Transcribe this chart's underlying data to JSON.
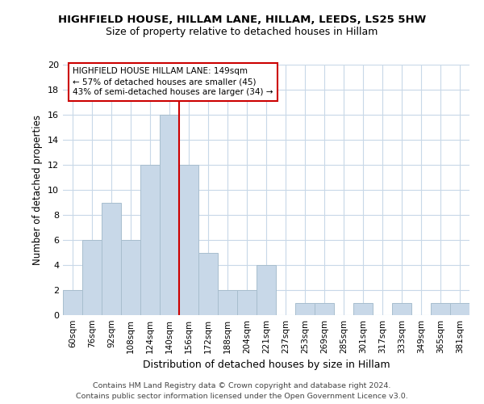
{
  "title": "HIGHFIELD HOUSE, HILLAM LANE, HILLAM, LEEDS, LS25 5HW",
  "subtitle": "Size of property relative to detached houses in Hillam",
  "xlabel": "Distribution of detached houses by size in Hillam",
  "ylabel": "Number of detached properties",
  "bar_labels": [
    "60sqm",
    "76sqm",
    "92sqm",
    "108sqm",
    "124sqm",
    "140sqm",
    "156sqm",
    "172sqm",
    "188sqm",
    "204sqm",
    "221sqm",
    "237sqm",
    "253sqm",
    "269sqm",
    "285sqm",
    "301sqm",
    "317sqm",
    "333sqm",
    "349sqm",
    "365sqm",
    "381sqm"
  ],
  "bar_values": [
    2,
    6,
    9,
    6,
    12,
    16,
    12,
    5,
    2,
    2,
    4,
    0,
    1,
    1,
    0,
    1,
    0,
    1,
    0,
    1,
    1
  ],
  "bar_color": "#c8d8e8",
  "bar_edgecolor": "#a8bece",
  "vline_x": 5.5,
  "vline_color": "#cc0000",
  "annotation_text": "HIGHFIELD HOUSE HILLAM LANE: 149sqm\n← 57% of detached houses are smaller (45)\n43% of semi-detached houses are larger (34) →",
  "annotation_box_color": "#ffffff",
  "annotation_box_edgecolor": "#cc0000",
  "ylim": [
    0,
    20
  ],
  "yticks": [
    0,
    2,
    4,
    6,
    8,
    10,
    12,
    14,
    16,
    18,
    20
  ],
  "footer_line1": "Contains HM Land Registry data © Crown copyright and database right 2024.",
  "footer_line2": "Contains public sector information licensed under the Open Government Licence v3.0.",
  "background_color": "#ffffff",
  "grid_color": "#c8d8e8"
}
